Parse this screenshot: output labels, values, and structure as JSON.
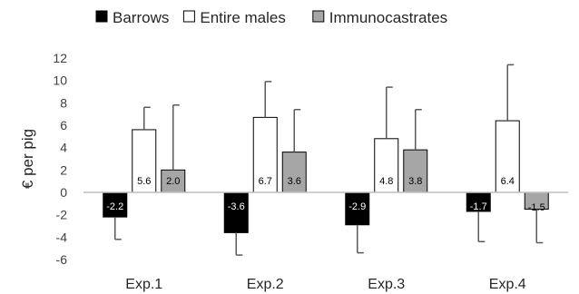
{
  "chart_data": {
    "type": "bar",
    "title": "",
    "xlabel": "",
    "ylabel": "€ per pig",
    "categories": [
      "Exp.1",
      "Exp.2",
      "Exp.3",
      "Exp.4"
    ],
    "ylim": [
      -6,
      12
    ],
    "yticks": [
      -6,
      -4,
      -2,
      0,
      2,
      4,
      6,
      8,
      10,
      12
    ],
    "grid": false,
    "legend_position": "top",
    "series": [
      {
        "name": "Barrows",
        "color": "#000000",
        "values": [
          -2.2,
          -3.6,
          -2.9,
          -1.7
        ],
        "labels": [
          "-2.2",
          "-3.6",
          "-2.9",
          "-1.7"
        ],
        "error_low": [
          -4.2,
          -5.6,
          -5.4,
          -4.4
        ]
      },
      {
        "name": "Entire males",
        "color": "#ffffff",
        "values": [
          5.6,
          6.7,
          4.8,
          6.4
        ],
        "labels": [
          "5.6",
          "6.7",
          "4.8",
          "6.4"
        ],
        "error_high": [
          7.6,
          9.9,
          9.4,
          11.4
        ]
      },
      {
        "name": "Immunocastrates",
        "color": "#a6a6a6",
        "values": [
          2.0,
          3.6,
          3.8,
          -1.5
        ],
        "labels": [
          "2.0",
          "3.6",
          "3.8",
          "-1.5"
        ],
        "error_high": [
          7.8,
          7.4,
          7.4,
          null
        ],
        "error_low": [
          null,
          null,
          null,
          -4.5
        ]
      }
    ]
  }
}
